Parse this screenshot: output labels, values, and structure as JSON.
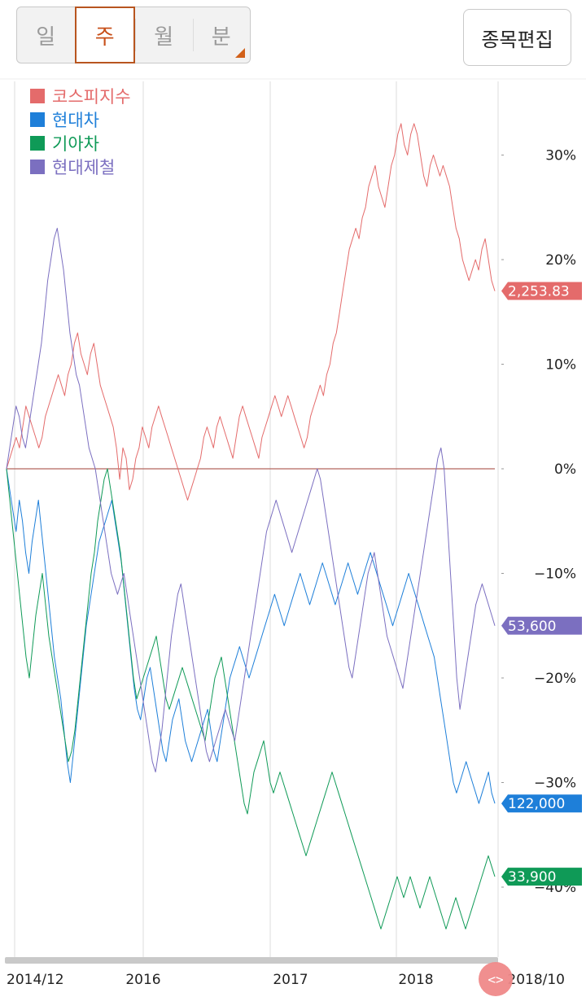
{
  "toolbar": {
    "period_tabs": [
      "일",
      "주",
      "월",
      "분"
    ],
    "active_tab": 1,
    "edit_label": "종목편집",
    "accent_color": "#c8511b"
  },
  "chart_data": {
    "type": "line",
    "x_labels": [
      "2014/12",
      "2016",
      "2017",
      "2018",
      "2018/10"
    ],
    "y_ticks": [
      "30%",
      "20%",
      "10%",
      "0%",
      "−10%",
      "−20%",
      "−30%",
      "−40%"
    ],
    "ylim": [
      -45,
      35
    ],
    "grid": true,
    "legend_position": "top-left",
    "series": [
      {
        "name": "코스피지수",
        "color": "#e46b6b",
        "last_value": "2,253.83",
        "values": [
          0,
          1,
          2,
          3,
          2,
          4,
          6,
          5,
          4,
          3,
          2,
          3,
          5,
          6,
          7,
          8,
          9,
          8,
          7,
          9,
          10,
          12,
          13,
          11,
          10,
          9,
          11,
          12,
          10,
          8,
          7,
          6,
          5,
          4,
          2,
          -1,
          2,
          1,
          -2,
          -1,
          1,
          2,
          4,
          3,
          2,
          4,
          5,
          6,
          5,
          4,
          3,
          2,
          1,
          0,
          -1,
          -2,
          -3,
          -2,
          -1,
          0,
          1,
          3,
          4,
          3,
          2,
          4,
          5,
          4,
          3,
          2,
          1,
          3,
          5,
          6,
          5,
          4,
          3,
          2,
          1,
          3,
          4,
          5,
          6,
          7,
          6,
          5,
          6,
          7,
          6,
          5,
          4,
          3,
          2,
          3,
          5,
          6,
          7,
          8,
          7,
          9,
          10,
          12,
          13,
          15,
          17,
          19,
          21,
          22,
          23,
          22,
          24,
          25,
          27,
          28,
          29,
          27,
          26,
          25,
          27,
          29,
          30,
          32,
          33,
          31,
          30,
          32,
          33,
          32,
          30,
          28,
          27,
          29,
          30,
          29,
          28,
          29,
          28,
          27,
          25,
          23,
          22,
          20,
          19,
          18,
          19,
          20,
          19,
          21,
          22,
          20,
          18,
          17
        ]
      },
      {
        "name": "현대차",
        "color": "#1e7fd9",
        "last_value": "122,000",
        "values": [
          0,
          -2,
          -4,
          -6,
          -3,
          -5,
          -8,
          -10,
          -7,
          -5,
          -3,
          -6,
          -9,
          -12,
          -15,
          -18,
          -20,
          -22,
          -25,
          -28,
          -30,
          -27,
          -24,
          -21,
          -18,
          -15,
          -13,
          -11,
          -9,
          -7,
          -6,
          -5,
          -4,
          -3,
          -5,
          -7,
          -9,
          -12,
          -15,
          -18,
          -21,
          -23,
          -24,
          -22,
          -20,
          -19,
          -21,
          -23,
          -25,
          -27,
          -28,
          -26,
          -24,
          -23,
          -22,
          -24,
          -26,
          -27,
          -28,
          -27,
          -26,
          -25,
          -24,
          -23,
          -25,
          -27,
          -28,
          -26,
          -24,
          -22,
          -20,
          -19,
          -18,
          -17,
          -18,
          -19,
          -20,
          -19,
          -18,
          -17,
          -16,
          -15,
          -14,
          -13,
          -12,
          -13,
          -14,
          -15,
          -14,
          -13,
          -12,
          -11,
          -10,
          -11,
          -12,
          -13,
          -12,
          -11,
          -10,
          -9,
          -10,
          -11,
          -12,
          -13,
          -12,
          -11,
          -10,
          -9,
          -10,
          -11,
          -12,
          -11,
          -10,
          -9,
          -8,
          -9,
          -10,
          -11,
          -12,
          -13,
          -14,
          -15,
          -14,
          -13,
          -12,
          -11,
          -10,
          -11,
          -12,
          -13,
          -14,
          -15,
          -16,
          -17,
          -18,
          -20,
          -22,
          -24,
          -26,
          -28,
          -30,
          -31,
          -30,
          -29,
          -28,
          -29,
          -30,
          -31,
          -32,
          -31,
          -30,
          -29,
          -31,
          -32
        ]
      },
      {
        "name": "기아차",
        "color": "#0f9a57",
        "last_value": "33,900",
        "values": [
          0,
          -3,
          -6,
          -9,
          -12,
          -15,
          -18,
          -20,
          -17,
          -14,
          -12,
          -10,
          -13,
          -16,
          -18,
          -20,
          -22,
          -24,
          -26,
          -28,
          -27,
          -25,
          -22,
          -19,
          -16,
          -13,
          -10,
          -8,
          -5,
          -3,
          -1,
          0,
          -2,
          -4,
          -6,
          -8,
          -11,
          -14,
          -17,
          -20,
          -22,
          -21,
          -20,
          -19,
          -18,
          -17,
          -16,
          -18,
          -20,
          -22,
          -23,
          -22,
          -21,
          -20,
          -19,
          -20,
          -21,
          -22,
          -23,
          -24,
          -25,
          -26,
          -24,
          -22,
          -20,
          -19,
          -18,
          -20,
          -22,
          -24,
          -26,
          -28,
          -30,
          -32,
          -33,
          -31,
          -29,
          -28,
          -27,
          -26,
          -28,
          -30,
          -31,
          -30,
          -29,
          -30,
          -31,
          -32,
          -33,
          -34,
          -35,
          -36,
          -37,
          -36,
          -35,
          -34,
          -33,
          -32,
          -31,
          -30,
          -29,
          -30,
          -31,
          -32,
          -33,
          -34,
          -35,
          -36,
          -37,
          -38,
          -39,
          -40,
          -41,
          -42,
          -43,
          -44,
          -43,
          -42,
          -41,
          -40,
          -39,
          -40,
          -41,
          -40,
          -39,
          -40,
          -41,
          -42,
          -41,
          -40,
          -39,
          -40,
          -41,
          -42,
          -43,
          -44,
          -43,
          -42,
          -41,
          -42,
          -43,
          -44,
          -43,
          -42,
          -41,
          -40,
          -39,
          -38,
          -37,
          -38,
          -39
        ]
      },
      {
        "name": "현대제철",
        "color": "#7b6fc0",
        "last_value": "53,600",
        "values": [
          0,
          2,
          4,
          6,
          5,
          3,
          2,
          4,
          6,
          8,
          10,
          12,
          15,
          18,
          20,
          22,
          23,
          21,
          19,
          16,
          13,
          11,
          9,
          8,
          6,
          4,
          2,
          1,
          0,
          -2,
          -4,
          -6,
          -8,
          -10,
          -11,
          -12,
          -11,
          -10,
          -12,
          -14,
          -16,
          -18,
          -20,
          -22,
          -24,
          -26,
          -28,
          -29,
          -27,
          -25,
          -22,
          -19,
          -16,
          -14,
          -12,
          -11,
          -13,
          -15,
          -17,
          -19,
          -21,
          -23,
          -25,
          -27,
          -28,
          -27,
          -26,
          -25,
          -24,
          -23,
          -24,
          -25,
          -26,
          -24,
          -22,
          -20,
          -18,
          -16,
          -14,
          -12,
          -10,
          -8,
          -6,
          -5,
          -4,
          -3,
          -4,
          -5,
          -6,
          -7,
          -8,
          -7,
          -6,
          -5,
          -4,
          -3,
          -2,
          -1,
          0,
          -1,
          -3,
          -5,
          -7,
          -9,
          -11,
          -13,
          -15,
          -17,
          -19,
          -20,
          -18,
          -16,
          -14,
          -12,
          -10,
          -9,
          -8,
          -10,
          -12,
          -14,
          -16,
          -17,
          -18,
          -19,
          -20,
          -21,
          -19,
          -17,
          -15,
          -13,
          -11,
          -9,
          -7,
          -5,
          -3,
          -1,
          1,
          2,
          0,
          -5,
          -10,
          -15,
          -20,
          -23,
          -21,
          -19,
          -17,
          -15,
          -13,
          -12,
          -11,
          -12,
          -13,
          -14,
          -15
        ]
      }
    ]
  }
}
